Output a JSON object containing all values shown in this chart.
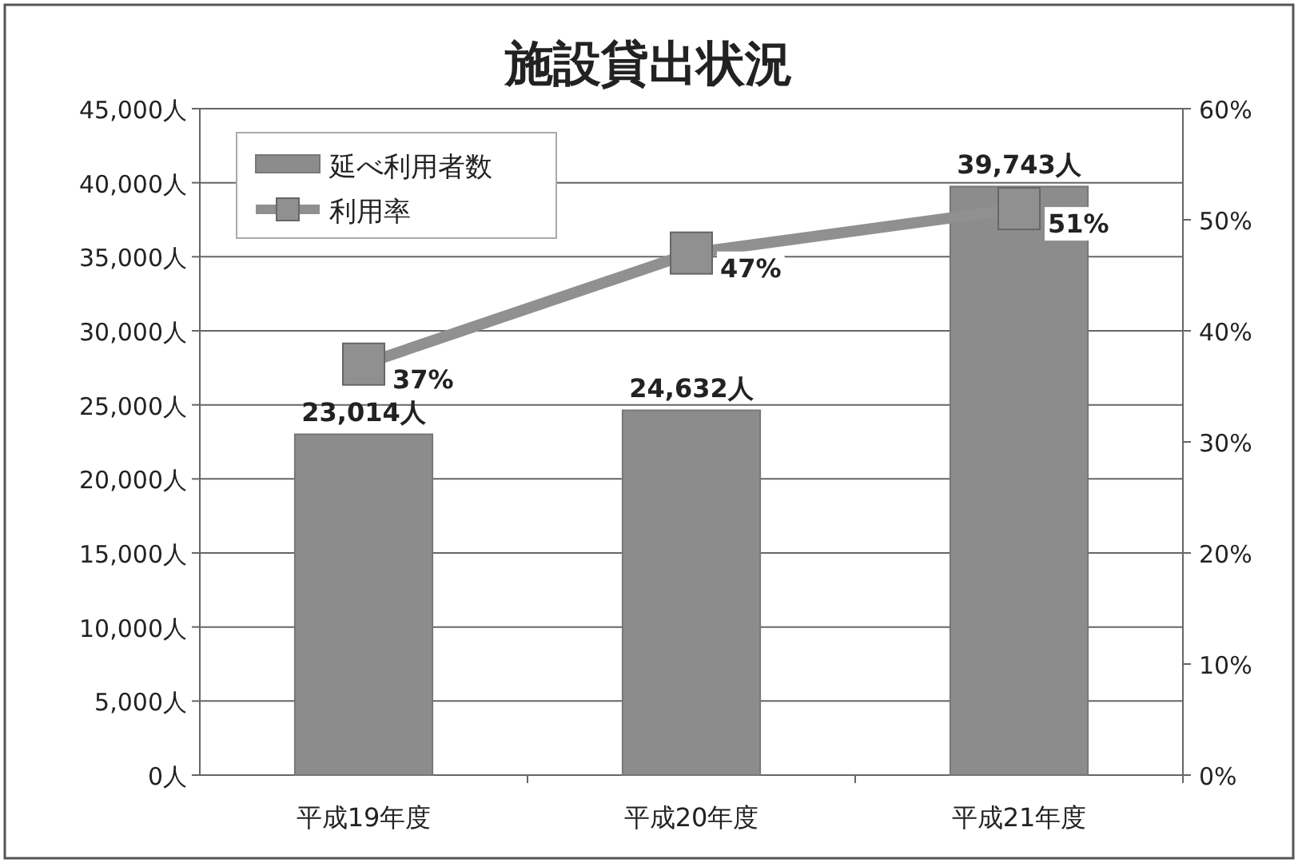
{
  "chart_data": {
    "type": "bar",
    "title": "施設貸出状況",
    "categories": [
      "平成19年度",
      "平成20年度",
      "平成21年度"
    ],
    "series": [
      {
        "name": "延べ利用者数",
        "color": "#8c8c8c",
        "values": [
          23014,
          24632,
          39743
        ],
        "value_labels": [
          "23,014人",
          "24,632人",
          "39,743人"
        ]
      },
      {
        "name": "利用率",
        "type": "line",
        "axis": "y2",
        "color": "#909090",
        "values": [
          37,
          47,
          51
        ],
        "value_labels": [
          "37%",
          "47%",
          "51%"
        ]
      }
    ],
    "ylim": [
      0,
      45000
    ],
    "yticks": [
      {
        "value": 0,
        "label": "0人"
      },
      {
        "value": 5000,
        "label": "5,000人"
      },
      {
        "value": 10000,
        "label": "10,000人"
      },
      {
        "value": 15000,
        "label": "15,000人"
      },
      {
        "value": 20000,
        "label": "20,000人"
      },
      {
        "value": 25000,
        "label": "25,000人"
      },
      {
        "value": 30000,
        "label": "30,000人"
      },
      {
        "value": 35000,
        "label": "35,000人"
      },
      {
        "value": 40000,
        "label": "40,000人"
      },
      {
        "value": 45000,
        "label": "45,000人"
      }
    ],
    "y2lim": [
      0,
      60
    ],
    "y2ticks": [
      {
        "value": 0,
        "label": "0%"
      },
      {
        "value": 10,
        "label": "10%"
      },
      {
        "value": 20,
        "label": "20%"
      },
      {
        "value": 30,
        "label": "30%"
      },
      {
        "value": 40,
        "label": "40%"
      },
      {
        "value": 50,
        "label": "50%"
      },
      {
        "value": 60,
        "label": "60%"
      }
    ],
    "grid": "y",
    "legend": "top left",
    "marker": "square",
    "line_style": "solid"
  }
}
